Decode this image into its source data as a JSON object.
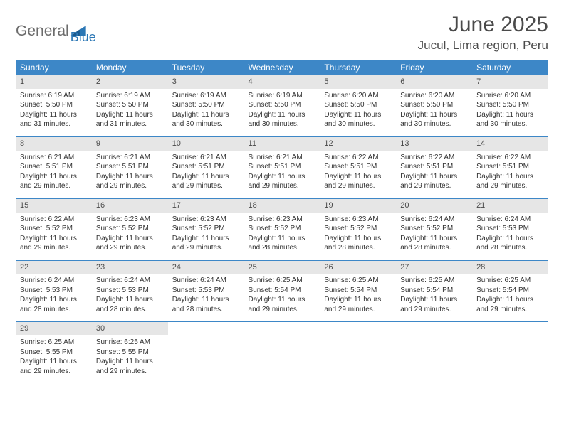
{
  "logo": {
    "general": "General",
    "blue": "Blue"
  },
  "header": {
    "title": "June 2025",
    "location": "Jucul, Lima region, Peru"
  },
  "colors": {
    "header_bg": "#3d87c7",
    "header_fg": "#ffffff",
    "daynum_bg": "#e6e6e6",
    "row_border": "#3d87c7",
    "text": "#333333",
    "logo_gray": "#6c6c6c",
    "logo_blue": "#2b77b5"
  },
  "weekdays": [
    "Sunday",
    "Monday",
    "Tuesday",
    "Wednesday",
    "Thursday",
    "Friday",
    "Saturday"
  ],
  "weeks": [
    [
      {
        "n": "1",
        "sr": "6:19 AM",
        "ss": "5:50 PM",
        "dl": "11 hours and 31 minutes."
      },
      {
        "n": "2",
        "sr": "6:19 AM",
        "ss": "5:50 PM",
        "dl": "11 hours and 31 minutes."
      },
      {
        "n": "3",
        "sr": "6:19 AM",
        "ss": "5:50 PM",
        "dl": "11 hours and 30 minutes."
      },
      {
        "n": "4",
        "sr": "6:19 AM",
        "ss": "5:50 PM",
        "dl": "11 hours and 30 minutes."
      },
      {
        "n": "5",
        "sr": "6:20 AM",
        "ss": "5:50 PM",
        "dl": "11 hours and 30 minutes."
      },
      {
        "n": "6",
        "sr": "6:20 AM",
        "ss": "5:50 PM",
        "dl": "11 hours and 30 minutes."
      },
      {
        "n": "7",
        "sr": "6:20 AM",
        "ss": "5:50 PM",
        "dl": "11 hours and 30 minutes."
      }
    ],
    [
      {
        "n": "8",
        "sr": "6:21 AM",
        "ss": "5:51 PM",
        "dl": "11 hours and 29 minutes."
      },
      {
        "n": "9",
        "sr": "6:21 AM",
        "ss": "5:51 PM",
        "dl": "11 hours and 29 minutes."
      },
      {
        "n": "10",
        "sr": "6:21 AM",
        "ss": "5:51 PM",
        "dl": "11 hours and 29 minutes."
      },
      {
        "n": "11",
        "sr": "6:21 AM",
        "ss": "5:51 PM",
        "dl": "11 hours and 29 minutes."
      },
      {
        "n": "12",
        "sr": "6:22 AM",
        "ss": "5:51 PM",
        "dl": "11 hours and 29 minutes."
      },
      {
        "n": "13",
        "sr": "6:22 AM",
        "ss": "5:51 PM",
        "dl": "11 hours and 29 minutes."
      },
      {
        "n": "14",
        "sr": "6:22 AM",
        "ss": "5:51 PM",
        "dl": "11 hours and 29 minutes."
      }
    ],
    [
      {
        "n": "15",
        "sr": "6:22 AM",
        "ss": "5:52 PM",
        "dl": "11 hours and 29 minutes."
      },
      {
        "n": "16",
        "sr": "6:23 AM",
        "ss": "5:52 PM",
        "dl": "11 hours and 29 minutes."
      },
      {
        "n": "17",
        "sr": "6:23 AM",
        "ss": "5:52 PM",
        "dl": "11 hours and 29 minutes."
      },
      {
        "n": "18",
        "sr": "6:23 AM",
        "ss": "5:52 PM",
        "dl": "11 hours and 28 minutes."
      },
      {
        "n": "19",
        "sr": "6:23 AM",
        "ss": "5:52 PM",
        "dl": "11 hours and 28 minutes."
      },
      {
        "n": "20",
        "sr": "6:24 AM",
        "ss": "5:52 PM",
        "dl": "11 hours and 28 minutes."
      },
      {
        "n": "21",
        "sr": "6:24 AM",
        "ss": "5:53 PM",
        "dl": "11 hours and 28 minutes."
      }
    ],
    [
      {
        "n": "22",
        "sr": "6:24 AM",
        "ss": "5:53 PM",
        "dl": "11 hours and 28 minutes."
      },
      {
        "n": "23",
        "sr": "6:24 AM",
        "ss": "5:53 PM",
        "dl": "11 hours and 28 minutes."
      },
      {
        "n": "24",
        "sr": "6:24 AM",
        "ss": "5:53 PM",
        "dl": "11 hours and 28 minutes."
      },
      {
        "n": "25",
        "sr": "6:25 AM",
        "ss": "5:54 PM",
        "dl": "11 hours and 29 minutes."
      },
      {
        "n": "26",
        "sr": "6:25 AM",
        "ss": "5:54 PM",
        "dl": "11 hours and 29 minutes."
      },
      {
        "n": "27",
        "sr": "6:25 AM",
        "ss": "5:54 PM",
        "dl": "11 hours and 29 minutes."
      },
      {
        "n": "28",
        "sr": "6:25 AM",
        "ss": "5:54 PM",
        "dl": "11 hours and 29 minutes."
      }
    ],
    [
      {
        "n": "29",
        "sr": "6:25 AM",
        "ss": "5:55 PM",
        "dl": "11 hours and 29 minutes."
      },
      {
        "n": "30",
        "sr": "6:25 AM",
        "ss": "5:55 PM",
        "dl": "11 hours and 29 minutes."
      },
      null,
      null,
      null,
      null,
      null
    ]
  ],
  "labels": {
    "sunrise": "Sunrise: ",
    "sunset": "Sunset: ",
    "daylight": "Daylight: "
  }
}
